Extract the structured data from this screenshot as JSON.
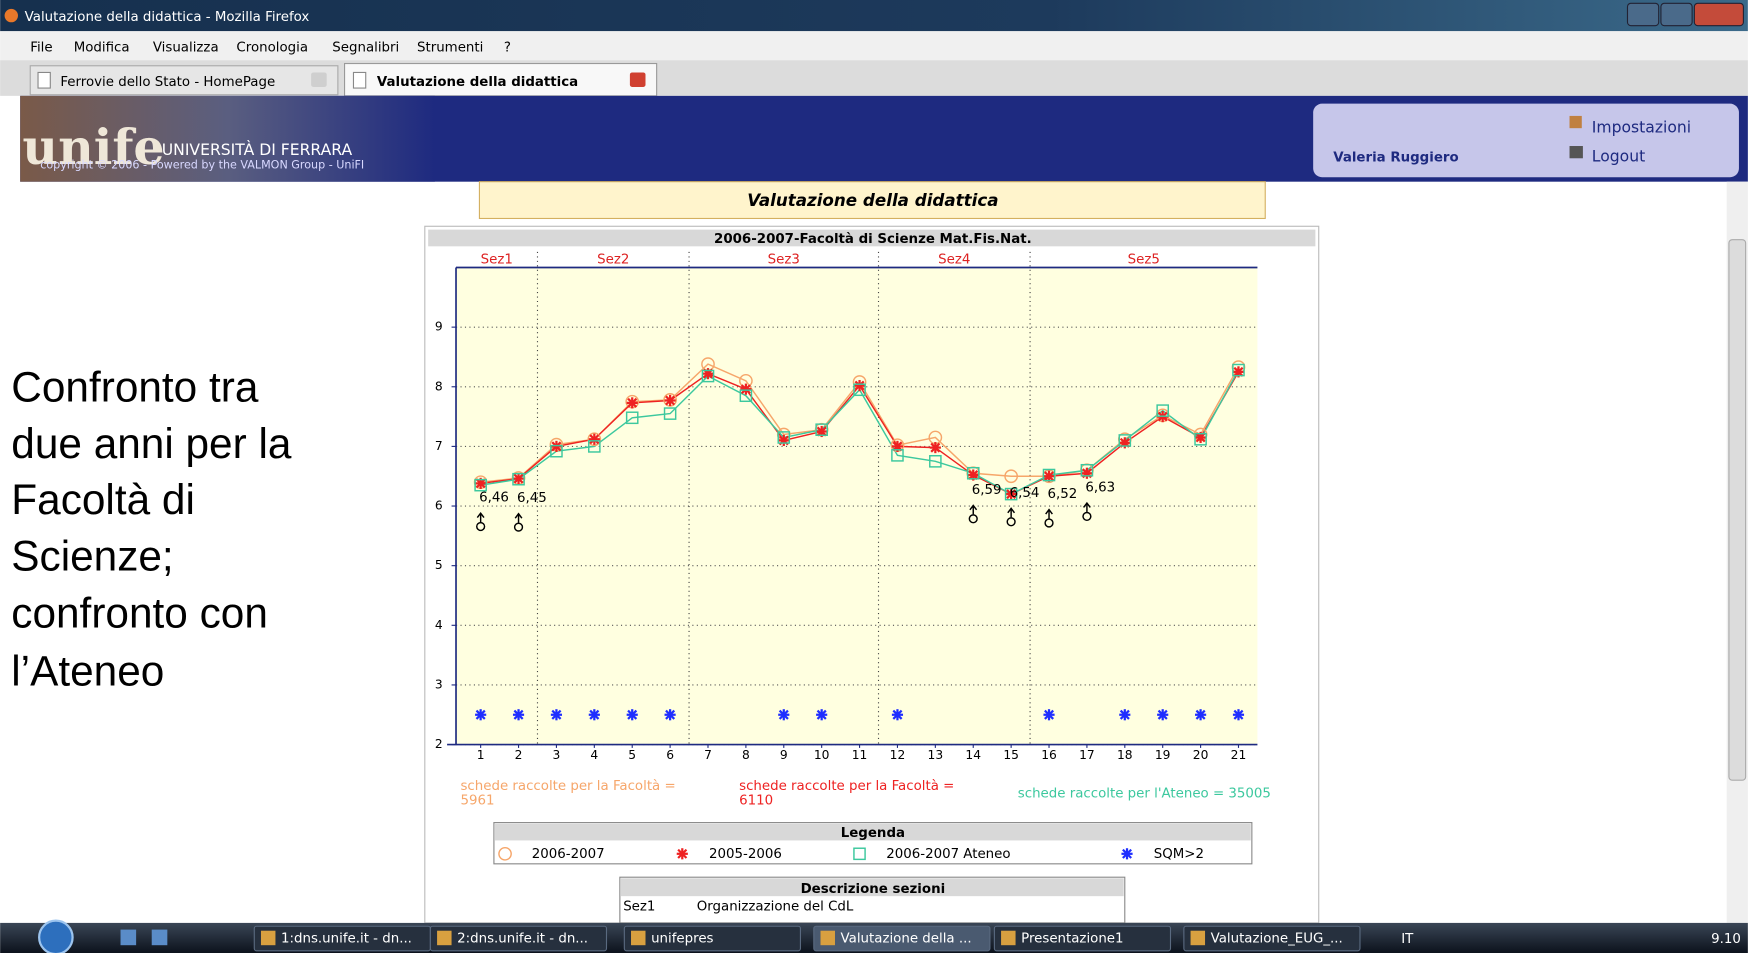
{
  "window": {
    "title": "Valutazione della didattica - Mozilla Firefox",
    "menu": [
      "File",
      "Modifica",
      "Visualizza",
      "Cronologia",
      "Segnalibri",
      "Strumenti",
      "?"
    ],
    "tabs": [
      "Ferrovie dello Stato - HomePage",
      "Valutazione della didattica"
    ]
  },
  "header": {
    "logo": "unife",
    "university": "UNIVERSITÀ DI FERRARA",
    "copyright": "copyright © 2006 - Powered by the VALMON Group - UniFI",
    "user": "Valeria Ruggiero",
    "links": [
      "Impostazioni",
      "Logout"
    ]
  },
  "page_title": "Valutazione della didattica",
  "slide_text": [
    "Confronto tra",
    "due anni per la",
    "Facoltà di",
    "Scienze;",
    "confronto con",
    "l’Ateneo"
  ],
  "chart_data": {
    "type": "line",
    "title": "2006-2007-Facoltà di Scienze Mat.Fis.Nat.",
    "sections": [
      "Sez1",
      "Sez2",
      "Sez3",
      "Sez4",
      "Sez5"
    ],
    "section_bounds": [
      2.5,
      6.5,
      11.5,
      15.5
    ],
    "x": [
      1,
      2,
      3,
      4,
      5,
      6,
      7,
      8,
      9,
      10,
      11,
      12,
      13,
      14,
      15,
      16,
      17,
      18,
      19,
      20,
      21
    ],
    "xlim": [
      0.35,
      21.5
    ],
    "xticks": [
      1,
      2,
      3,
      4,
      5,
      6,
      7,
      8,
      9,
      10,
      11,
      12,
      13,
      14,
      15,
      16,
      17,
      18,
      19,
      20,
      21
    ],
    "ylim": [
      2,
      10
    ],
    "yticks": [
      2,
      3,
      4,
      5,
      6,
      7,
      8,
      9
    ],
    "grid": true,
    "series": [
      {
        "name": "2006-2007",
        "color": "#f6a66a",
        "marker": "circle",
        "values": [
          6.4,
          6.47,
          7.03,
          7.12,
          7.75,
          7.78,
          8.38,
          8.1,
          7.2,
          7.28,
          8.08,
          7.02,
          7.15,
          6.55,
          6.5,
          6.5,
          6.6,
          7.12,
          7.52,
          7.2,
          8.33
        ]
      },
      {
        "name": "2005-2006",
        "color": "#ee2222",
        "marker": "asterisk",
        "values": [
          6.38,
          6.46,
          7.0,
          7.12,
          7.73,
          7.77,
          8.22,
          7.96,
          7.1,
          7.25,
          8.02,
          7.0,
          6.98,
          6.52,
          6.2,
          6.5,
          6.55,
          7.06,
          7.5,
          7.15,
          8.25
        ]
      },
      {
        "name": "2006-2007 Ateneo",
        "color": "#3cc89e",
        "marker": "square",
        "values": [
          6.35,
          6.45,
          6.92,
          7.0,
          7.48,
          7.55,
          8.18,
          7.85,
          7.15,
          7.28,
          7.95,
          6.85,
          6.75,
          6.55,
          6.2,
          6.52,
          6.6,
          7.1,
          7.6,
          7.12,
          8.28
        ]
      }
    ],
    "sqm": {
      "name": "SQM>2",
      "color": "#1f2eff",
      "marker": "asterisk",
      "x": [
        1,
        2,
        3,
        4,
        5,
        6,
        9,
        10,
        12,
        16,
        18,
        19,
        20,
        21
      ],
      "values": [
        2.5,
        2.5,
        2.5,
        2.5,
        2.5,
        2.5,
        2.5,
        2.5,
        2.5,
        2.5,
        2.5,
        2.5,
        2.5,
        2.5
      ]
    },
    "flags": {
      "x": [
        1,
        2,
        14,
        15,
        16,
        17
      ],
      "values": [
        6.46,
        6.45,
        6.59,
        6.54,
        6.52,
        6.63
      ],
      "value_labels": [
        "6,46",
        "6,45",
        "6,59",
        "6,54",
        "6,52",
        "6,63"
      ]
    },
    "notes": [
      {
        "lines": [
          "schede raccolte per la Facoltà =",
          "5961"
        ],
        "color": "#f6a66a"
      },
      {
        "lines": [
          "schede raccolte per la Facoltà =",
          "6110"
        ],
        "color": "#ee2222"
      },
      {
        "lines": [
          "schede raccolte per l'Ateneo = 35005"
        ],
        "color": "#3cc89e"
      }
    ],
    "legend_title": "Legenda"
  },
  "description": {
    "title": "Descrizione sezioni",
    "rows": [
      [
        "Sez1",
        "Organizzazione del CdL"
      ]
    ]
  },
  "taskbar": {
    "items": [
      "1:dns.unife.it - dn...",
      "2:dns.unife.it - dn...",
      "unifepres",
      "Valutazione della ...",
      "Presentazione1",
      "Valutazione_EUG_..."
    ],
    "language": "IT",
    "clock": "9.10"
  }
}
